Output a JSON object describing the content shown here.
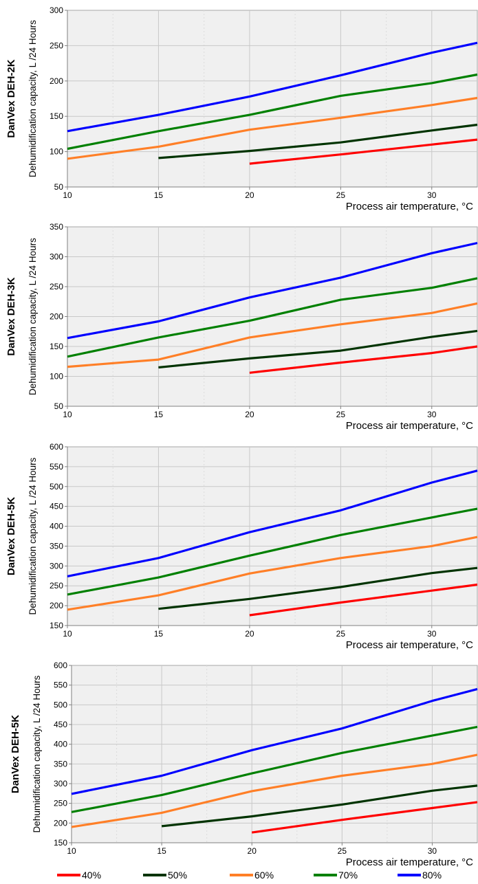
{
  "chart_data": [
    {
      "type": "line",
      "model_label": "DanVex DEH-2K",
      "ylabel": "Dehumidification capacity, L /24 Hours",
      "xlabel": "Process air temperature, °C",
      "xlim": [
        10,
        32.5
      ],
      "ylim": [
        50,
        300
      ],
      "x_ticks": [
        10,
        15,
        20,
        25,
        30
      ],
      "y_ticks": [
        50,
        100,
        150,
        200,
        250,
        300
      ],
      "grid": true,
      "series": [
        {
          "name": "40%",
          "color": "#ff0000",
          "x": [
            20,
            25,
            30,
            32.5
          ],
          "y": [
            83,
            96,
            110,
            117
          ]
        },
        {
          "name": "50%",
          "color": "#003300",
          "x": [
            15,
            20,
            25,
            30,
            32.5
          ],
          "y": [
            91,
            101,
            113,
            130,
            138
          ]
        },
        {
          "name": "60%",
          "color": "#ff7f27",
          "x": [
            10,
            15,
            20,
            25,
            30,
            32.5
          ],
          "y": [
            90,
            107,
            131,
            148,
            166,
            176
          ]
        },
        {
          "name": "70%",
          "color": "#008000",
          "x": [
            10,
            15,
            20,
            25,
            30,
            32.5
          ],
          "y": [
            104,
            129,
            152,
            179,
            197,
            209
          ]
        },
        {
          "name": "80%",
          "color": "#0000ff",
          "x": [
            10,
            15,
            20,
            25,
            30,
            32.5
          ],
          "y": [
            129,
            152,
            178,
            208,
            240,
            254
          ]
        }
      ]
    },
    {
      "type": "line",
      "model_label": "DanVex DEH-3K",
      "ylabel": "Dehumidification capacity, L /24 Hours",
      "xlabel": "Process air temperature, °C",
      "xlim": [
        10,
        32.5
      ],
      "ylim": [
        50,
        350
      ],
      "x_ticks": [
        10,
        15,
        20,
        25,
        30
      ],
      "y_ticks": [
        50,
        100,
        150,
        200,
        250,
        300,
        350
      ],
      "grid": true,
      "series": [
        {
          "name": "40%",
          "color": "#ff0000",
          "x": [
            20,
            25,
            30,
            32.5
          ],
          "y": [
            106,
            123,
            139,
            150
          ]
        },
        {
          "name": "50%",
          "color": "#003300",
          "x": [
            15,
            20,
            25,
            30,
            32.5
          ],
          "y": [
            115,
            130,
            143,
            166,
            176
          ]
        },
        {
          "name": "60%",
          "color": "#ff7f27",
          "x": [
            10,
            15,
            20,
            25,
            30,
            32.5
          ],
          "y": [
            116,
            128,
            165,
            187,
            206,
            222
          ]
        },
        {
          "name": "70%",
          "color": "#008000",
          "x": [
            10,
            15,
            20,
            25,
            30,
            32.5
          ],
          "y": [
            133,
            165,
            193,
            228,
            248,
            264
          ]
        },
        {
          "name": "80%",
          "color": "#0000ff",
          "x": [
            10,
            15,
            20,
            25,
            30,
            32.5
          ],
          "y": [
            164,
            192,
            232,
            265,
            306,
            323
          ]
        }
      ]
    },
    {
      "type": "line",
      "model_label": "DanVex DEH-5K",
      "ylabel": "Dehumidification capacity, L /24 Hours",
      "xlabel": "Process air temperature, °C",
      "xlim": [
        10,
        32.5
      ],
      "ylim": [
        150,
        600
      ],
      "x_ticks": [
        10,
        15,
        20,
        25,
        30
      ],
      "y_ticks": [
        150,
        200,
        250,
        300,
        350,
        400,
        450,
        500,
        550,
        600
      ],
      "grid": true,
      "series": [
        {
          "name": "40%",
          "color": "#ff0000",
          "x": [
            20,
            25,
            30,
            32.5
          ],
          "y": [
            176,
            208,
            238,
            253
          ]
        },
        {
          "name": "50%",
          "color": "#003300",
          "x": [
            15,
            20,
            25,
            30,
            32.5
          ],
          "y": [
            192,
            217,
            247,
            282,
            295
          ]
        },
        {
          "name": "60%",
          "color": "#ff7f27",
          "x": [
            10,
            15,
            20,
            25,
            30,
            32.5
          ],
          "y": [
            190,
            226,
            281,
            320,
            350,
            373
          ]
        },
        {
          "name": "70%",
          "color": "#008000",
          "x": [
            10,
            15,
            20,
            25,
            30,
            32.5
          ],
          "y": [
            228,
            271,
            326,
            378,
            422,
            444
          ]
        },
        {
          "name": "80%",
          "color": "#0000ff",
          "x": [
            10,
            15,
            20,
            25,
            30,
            32.5
          ],
          "y": [
            274,
            320,
            385,
            440,
            510,
            540
          ]
        }
      ]
    },
    {
      "type": "line",
      "model_label": "DanVex DEH-5K",
      "ylabel": "Dehumidification capacity, L /24 Hours",
      "xlabel": "Process air temperature, °C",
      "xlim": [
        10,
        32.5
      ],
      "ylim": [
        150,
        600
      ],
      "x_ticks": [
        10,
        15,
        20,
        25,
        30
      ],
      "y_ticks": [
        150,
        200,
        250,
        300,
        350,
        400,
        450,
        500,
        550,
        600
      ],
      "grid": true,
      "series": [
        {
          "name": "40%",
          "color": "#ff0000",
          "x": [
            20,
            25,
            30,
            32.5
          ],
          "y": [
            176,
            208,
            238,
            253
          ]
        },
        {
          "name": "50%",
          "color": "#003300",
          "x": [
            15,
            20,
            25,
            30,
            32.5
          ],
          "y": [
            192,
            217,
            247,
            282,
            295
          ]
        },
        {
          "name": "60%",
          "color": "#ff7f27",
          "x": [
            10,
            15,
            20,
            25,
            30,
            32.5
          ],
          "y": [
            190,
            226,
            281,
            320,
            350,
            373
          ]
        },
        {
          "name": "70%",
          "color": "#008000",
          "x": [
            10,
            15,
            20,
            25,
            30,
            32.5
          ],
          "y": [
            228,
            271,
            326,
            378,
            422,
            444
          ]
        },
        {
          "name": "80%",
          "color": "#0000ff",
          "x": [
            10,
            15,
            20,
            25,
            30,
            32.5
          ],
          "y": [
            274,
            320,
            385,
            440,
            510,
            540
          ]
        }
      ]
    }
  ],
  "legend": {
    "items": [
      {
        "label": "40%",
        "color": "#ff0000"
      },
      {
        "label": "50%",
        "color": "#003300"
      },
      {
        "label": "60%",
        "color": "#ff7f27"
      },
      {
        "label": "70%",
        "color": "#008000"
      },
      {
        "label": "80%",
        "color": "#0000ff"
      }
    ]
  }
}
